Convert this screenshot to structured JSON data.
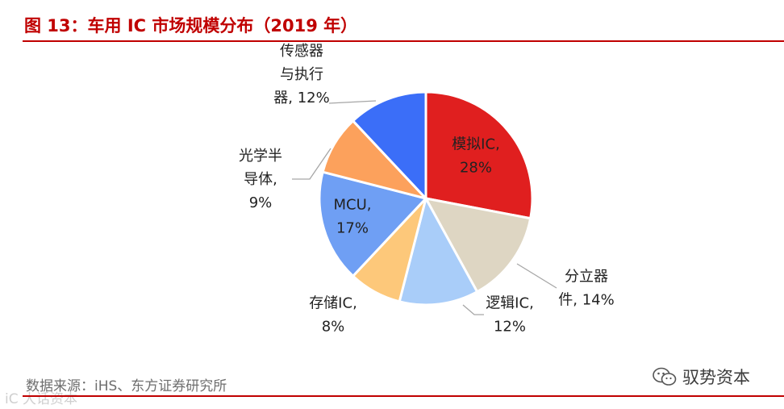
{
  "header": {
    "title": "图 13：车用 IC 市场规模分布（2019 年）"
  },
  "chart_data": {
    "type": "pie",
    "title": "车用 IC 市场规模分布（2019 年）",
    "slices": [
      {
        "name": "模拟IC",
        "value": 28,
        "color": "#e01f1f",
        "label_lines": [
          "模拟IC,",
          "28%"
        ]
      },
      {
        "name": "分立器件",
        "value": 14,
        "color": "#ded6c3",
        "label_lines": [
          "分立器",
          "件, 14%"
        ]
      },
      {
        "name": "逻辑IC",
        "value": 12,
        "color": "#a9cdf9",
        "label_lines": [
          "逻辑IC,",
          "12%"
        ]
      },
      {
        "name": "存储IC",
        "value": 8,
        "color": "#fdc87a",
        "label_lines": [
          "存储IC,",
          "8%"
        ]
      },
      {
        "name": "MCU",
        "value": 17,
        "color": "#6f9ff4",
        "label_lines": [
          "MCU,",
          "17%"
        ]
      },
      {
        "name": "光学半导体",
        "value": 9,
        "color": "#fca15c",
        "label_lines": [
          "光学半",
          "导体,",
          "9%"
        ]
      },
      {
        "name": "传感器与执行器",
        "value": 12,
        "color": "#3b6ef8",
        "label_lines": [
          "传感器",
          "与执行",
          "器, 12%"
        ]
      }
    ]
  },
  "footer": {
    "source": "数据来源：iHS、东方证券研究所",
    "brand": "驭势资本",
    "watermark_left": "iC 大话资本"
  },
  "icons": {
    "brand_icon": "wechat-icon"
  }
}
